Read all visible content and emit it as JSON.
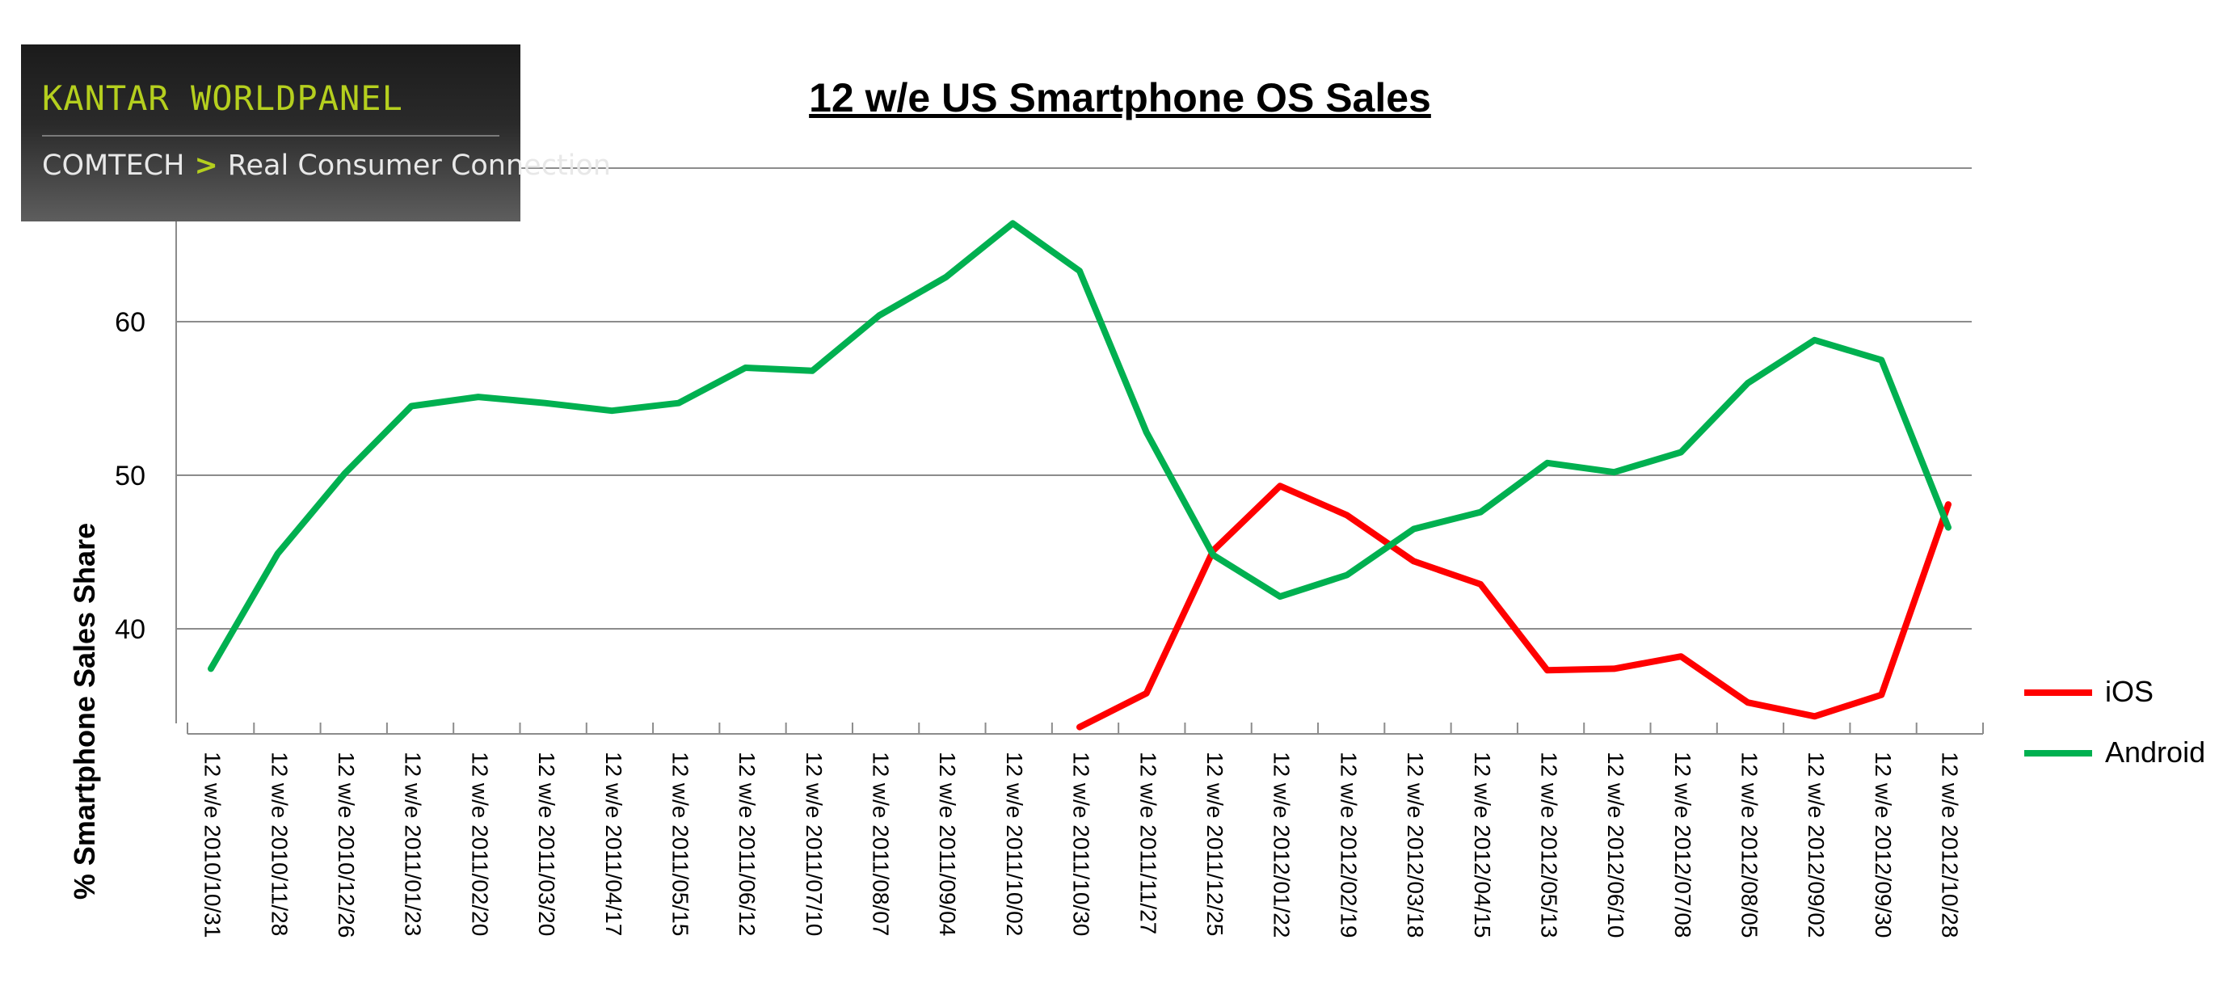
{
  "logo": {
    "brand": "KANTAR WORLDPANEL",
    "product": "COMTECH",
    "separator": ">",
    "tagline": "Real Consumer Connection"
  },
  "chart_data": {
    "type": "line",
    "title": "12 w/e US Smartphone OS Sales",
    "xlabel": "",
    "ylabel": "% Smartphone Sales Share",
    "ylim": [
      33.6,
      70
    ],
    "yticks": [
      40,
      50,
      60
    ],
    "grid": true,
    "legend_position": "right",
    "categories": [
      "12 w/e 2010/10/31",
      "12 w/e 2010/11/28",
      "12 w/e 2010/12/26",
      "12 w/e 2011/01/23",
      "12 w/e 2011/02/20",
      "12 w/e 2011/03/20",
      "12 w/e 2011/04/17",
      "12 w/e 2011/05/15",
      "12 w/e 2011/06/12",
      "12 w/e 2011/07/10",
      "12 w/e 2011/08/07",
      "12 w/e 2011/09/04",
      "12 w/e 2011/10/02",
      "12 w/e 2011/10/30",
      "12 w/e 2011/11/27",
      "12 w/e 2011/12/25",
      "12 w/e 2012/01/22",
      "12 w/e 2012/02/19",
      "12 w/e 2012/03/18",
      "12 w/e 2012/04/15",
      "12 w/e 2012/05/13",
      "12 w/e 2012/06/10",
      "12 w/e 2012/07/08",
      "12 w/e 2012/08/05",
      "12 w/e 2012/09/02",
      "12 w/e 2012/09/30",
      "12 w/e 2012/10/28"
    ],
    "series": [
      {
        "name": "iOS",
        "color": "#ff0000",
        "values": [
          null,
          null,
          null,
          null,
          null,
          null,
          null,
          null,
          null,
          null,
          null,
          null,
          null,
          33.6,
          35.8,
          45.1,
          49.3,
          47.4,
          44.4,
          42.9,
          37.3,
          37.4,
          38.2,
          35.2,
          34.3,
          35.7,
          48.1
        ]
      },
      {
        "name": "Android",
        "color": "#00b050",
        "values": [
          37.4,
          44.9,
          50.1,
          54.5,
          55.1,
          54.7,
          54.2,
          54.7,
          57.0,
          56.8,
          60.4,
          62.9,
          66.4,
          63.3,
          52.8,
          44.8,
          42.1,
          43.5,
          46.5,
          47.6,
          50.8,
          50.2,
          51.5,
          56.0,
          58.8,
          57.5,
          46.6
        ]
      }
    ]
  }
}
